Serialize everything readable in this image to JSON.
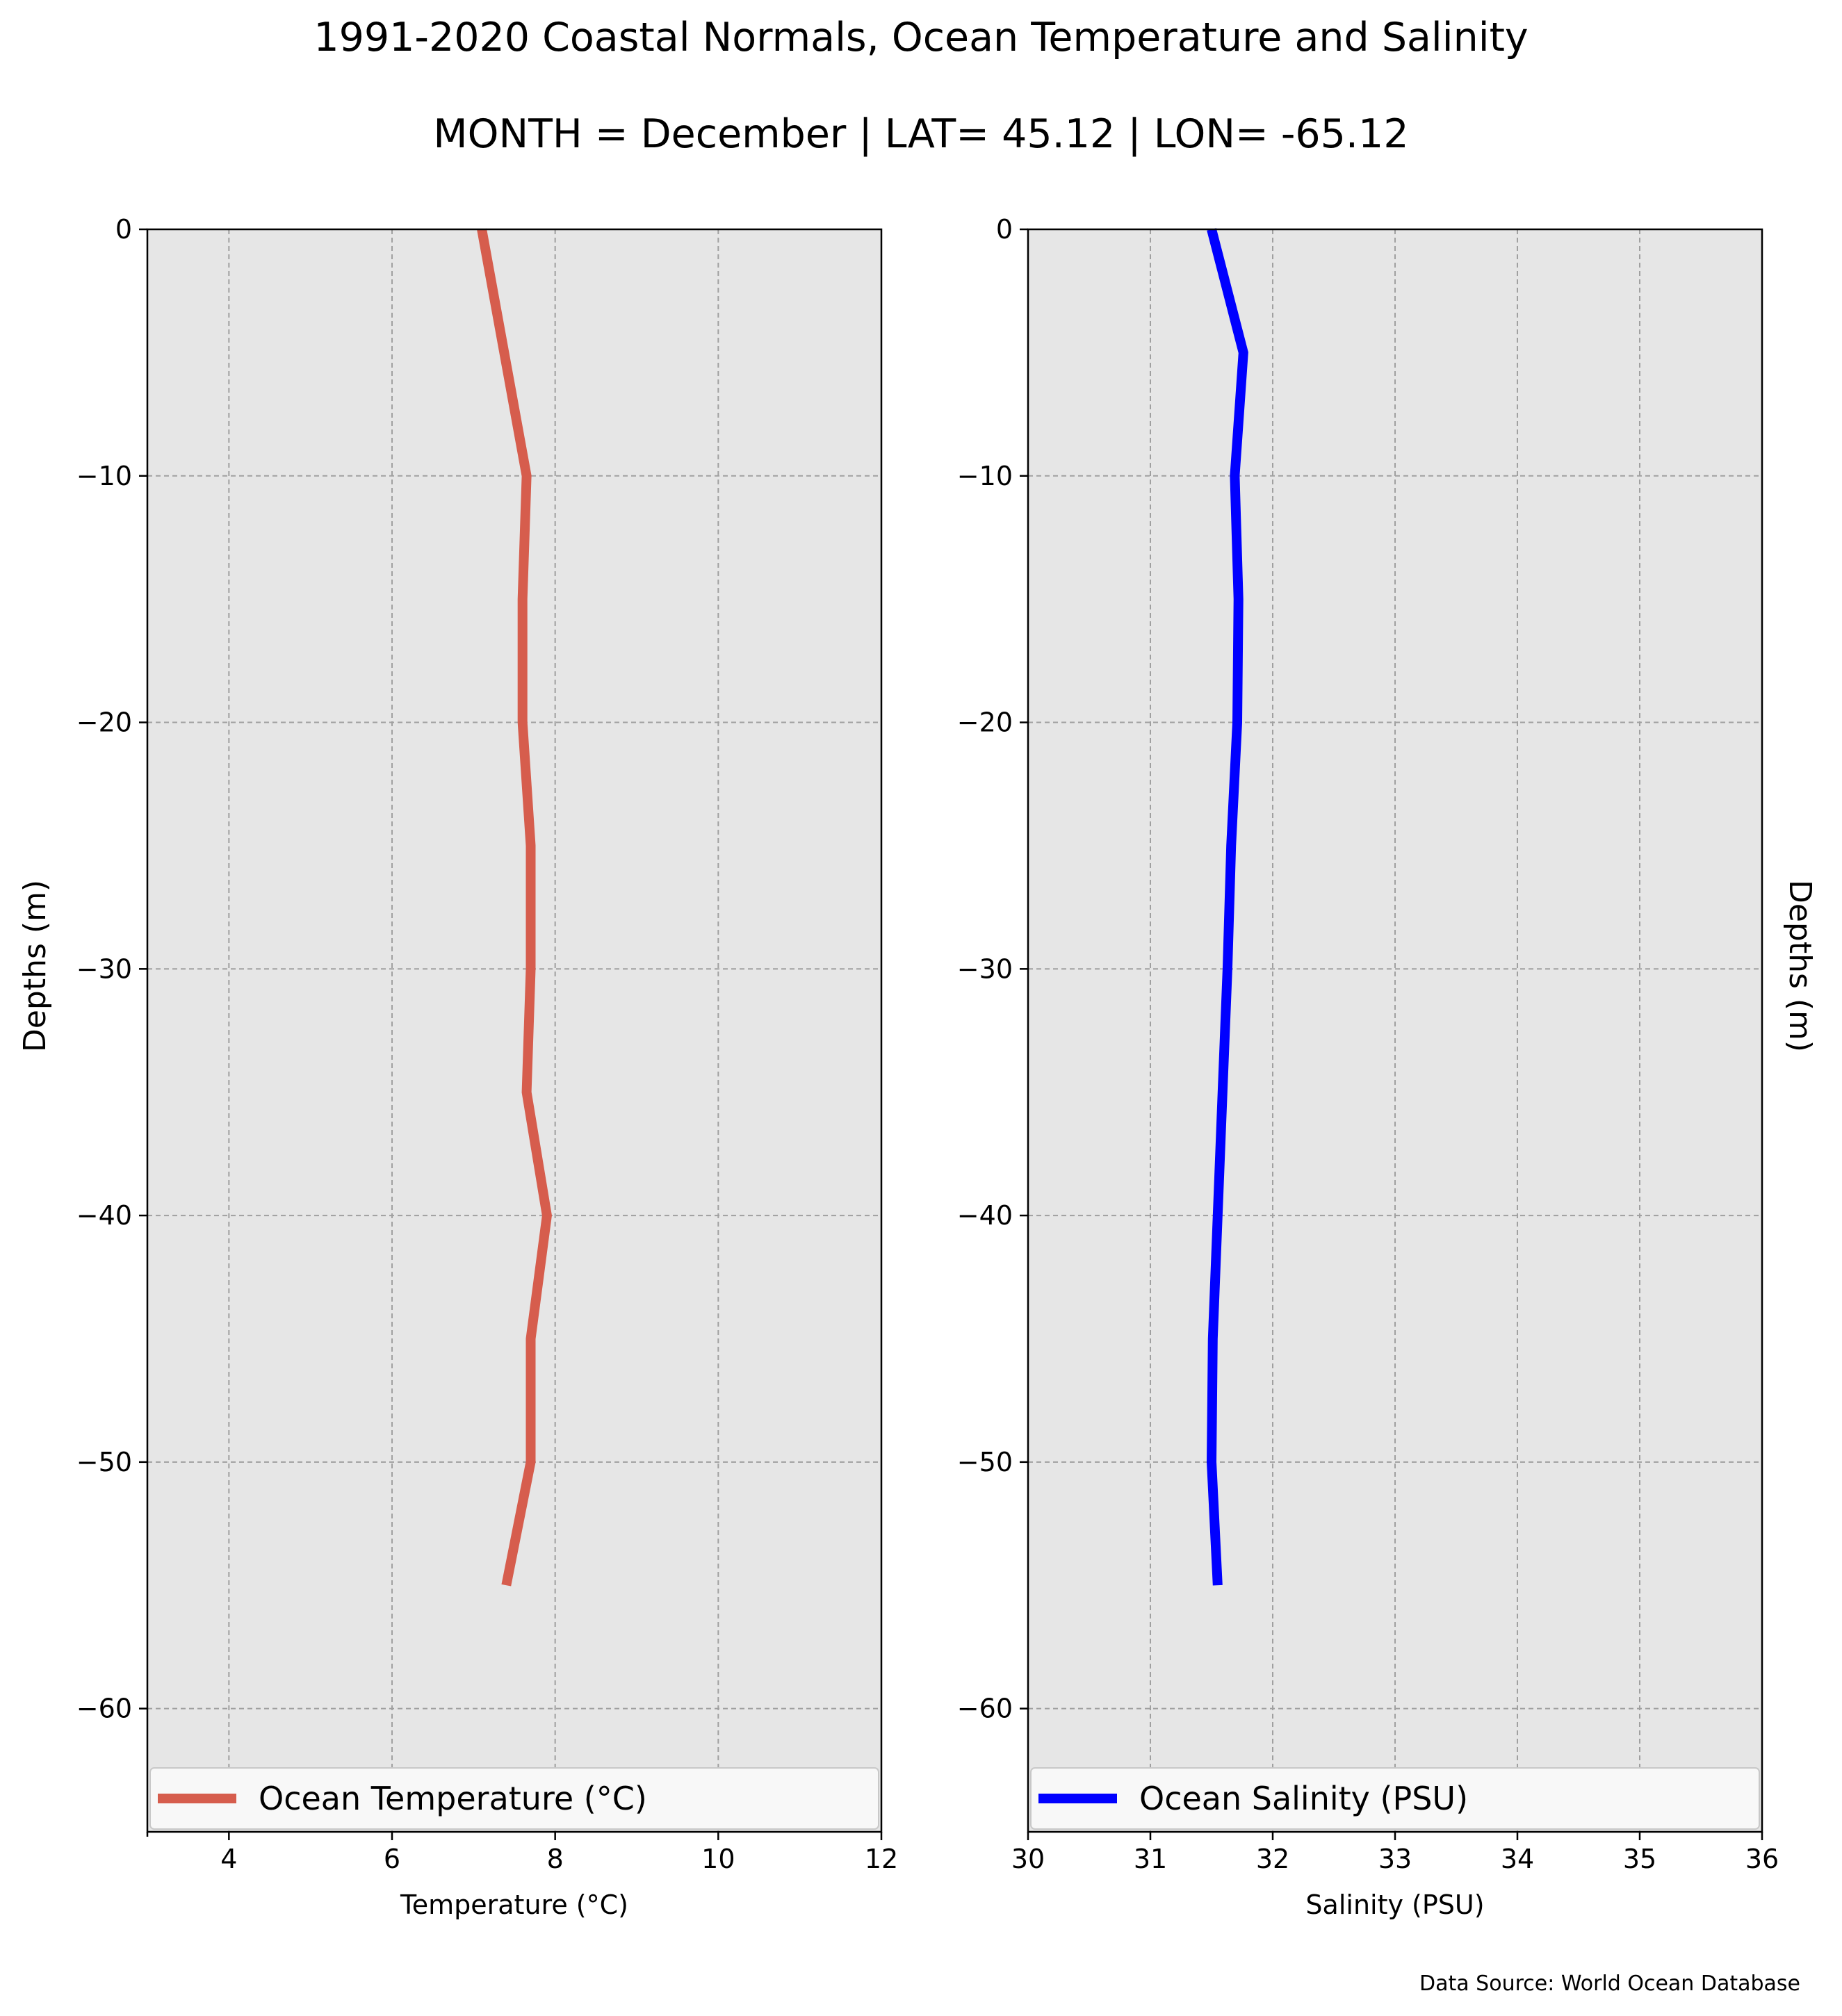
{
  "title": "1991-2020 Coastal Normals, Ocean Temperature and Salinity",
  "subtitle": "MONTH = December | LAT= 45.12 | LON= -65.12",
  "source": "Data Source: World Ocean Database",
  "chart_data": [
    {
      "type": "line",
      "name": "temperature-profile",
      "xlabel": "Temperature ($^\\circ$C)",
      "xlabel_display": "Temperature (°C)",
      "ylabel": "Depths (m)",
      "ylabel_side": "left",
      "xlim": [
        3,
        12
      ],
      "ylim": [
        -65,
        0
      ],
      "xticks": [
        4,
        6,
        8,
        10,
        12
      ],
      "yticks": [
        0,
        -10,
        -20,
        -30,
        -40,
        -50,
        -60
      ],
      "grid": true,
      "legend_placement": "bottom",
      "series": [
        {
          "name": "Ocean Temperature (°C)",
          "color": "#d65d4d",
          "x": [
            7.1,
            7.65,
            7.6,
            7.6,
            7.7,
            7.7,
            7.65,
            7.9,
            7.7,
            7.7,
            7.4
          ],
          "y": [
            0,
            -10,
            -15,
            -20,
            -25,
            -30,
            -35,
            -40,
            -45,
            -50,
            -55
          ]
        }
      ]
    },
    {
      "type": "line",
      "name": "salinity-profile",
      "xlabel": "Salinity (PSU)",
      "ylabel": "Depths (m)",
      "ylabel_side": "right",
      "xlim": [
        30,
        36
      ],
      "ylim": [
        -65,
        0
      ],
      "xticks": [
        30,
        31,
        32,
        33,
        34,
        35,
        36
      ],
      "yticks": [
        0,
        -10,
        -20,
        -30,
        -40,
        -50,
        -60
      ],
      "grid": true,
      "legend_placement": "bottom",
      "series": [
        {
          "name": "Ocean Salinity (PSU)",
          "color": "#0000ff",
          "x": [
            31.5,
            31.76,
            31.69,
            31.72,
            31.71,
            31.66,
            31.63,
            31.59,
            31.55,
            31.51,
            31.5,
            31.55
          ],
          "y": [
            0,
            -5,
            -10,
            -15,
            -20,
            -25,
            -30,
            -35,
            -40,
            -45,
            -50,
            -55
          ]
        }
      ]
    }
  ]
}
